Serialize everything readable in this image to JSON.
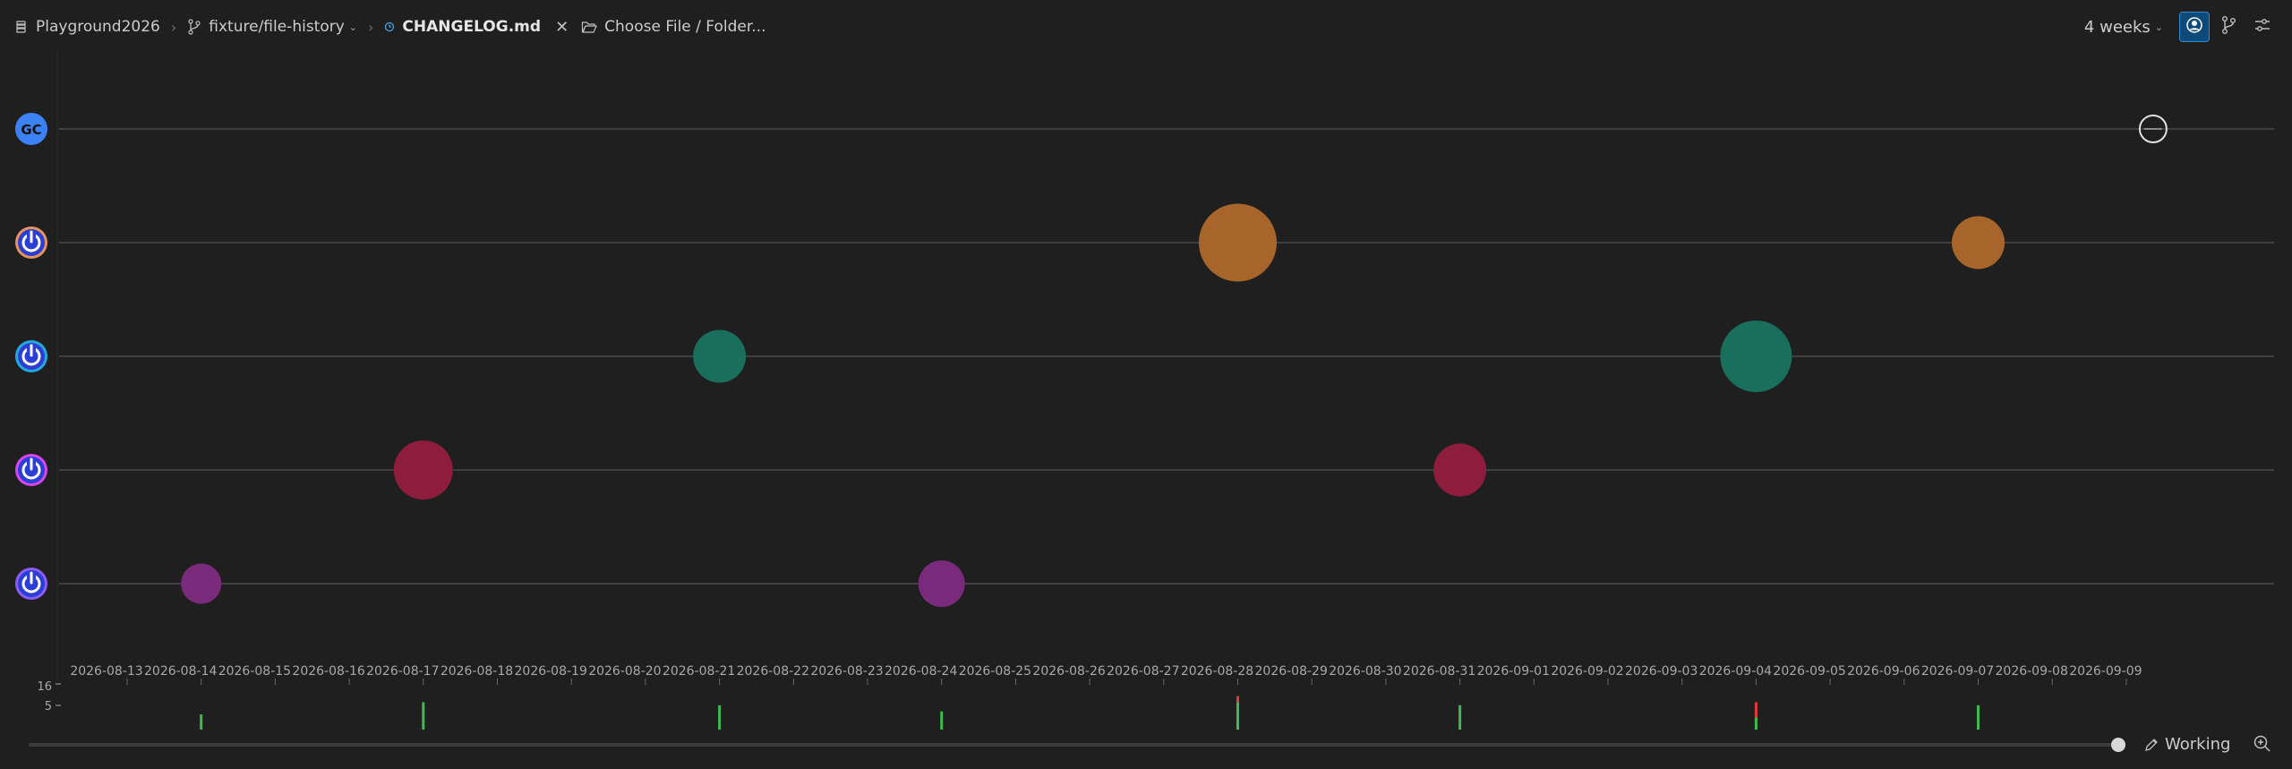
{
  "toolbar": {
    "repo": "Playground2026",
    "branch": "fixture/file-history",
    "file": "CHANGELOG.md",
    "choose": "Choose File / Folder...",
    "period": "4 weeks"
  },
  "authors": [
    {
      "initials": "GC",
      "color": "#3b82f6",
      "ring": "#3b82f6",
      "type": "initials"
    },
    {
      "initials": "",
      "color": "#2b3fd4",
      "ring": "#e8935a",
      "type": "power"
    },
    {
      "initials": "",
      "color": "#2b3fd4",
      "ring": "#23a8e0",
      "type": "power"
    },
    {
      "initials": "",
      "color": "#2b3fd4",
      "ring": "#d946ef",
      "type": "power"
    },
    {
      "initials": "",
      "color": "#2b3fd4",
      "ring": "#8b5cf6",
      "type": "power"
    }
  ],
  "chart_data": {
    "type": "scatter",
    "x_dates": [
      "2026-08-13",
      "2026-08-14",
      "2026-08-15",
      "2026-08-16",
      "2026-08-17",
      "2026-08-18",
      "2026-08-19",
      "2026-08-20",
      "2026-08-21",
      "2026-08-22",
      "2026-08-23",
      "2026-08-24",
      "2026-08-25",
      "2026-08-26",
      "2026-08-27",
      "2026-08-28",
      "2026-08-29",
      "2026-08-30",
      "2026-08-31",
      "2026-09-01",
      "2026-09-02",
      "2026-09-03",
      "2026-09-04",
      "2026-09-05",
      "2026-09-06",
      "2026-09-07",
      "2026-09-08",
      "2026-09-09"
    ],
    "points": [
      {
        "author": 4,
        "date": "2026-08-14",
        "size": 3,
        "color": "#7a2a7a"
      },
      {
        "author": 3,
        "date": "2026-08-17",
        "size": 6,
        "color": "#8e1c3c"
      },
      {
        "author": 2,
        "date": "2026-08-21",
        "size": 5,
        "color": "#1a6e5c"
      },
      {
        "author": 4,
        "date": "2026-08-24",
        "size": 4,
        "color": "#7a2a7a"
      },
      {
        "author": 1,
        "date": "2026-08-28",
        "size": 9,
        "color": "#a8652b"
      },
      {
        "author": 3,
        "date": "2026-08-31",
        "size": 5,
        "color": "#8e1c3c"
      },
      {
        "author": 2,
        "date": "2026-09-04",
        "size": 8,
        "color": "#1a6e5c"
      },
      {
        "author": 1,
        "date": "2026-09-07",
        "size": 5,
        "color": "#a8652b"
      }
    ],
    "working_marker": {
      "author": 0,
      "date": "2026-09-09"
    },
    "histogram": {
      "ymax_label": "16",
      "ymid_label": "5",
      "bars": [
        {
          "date": "2026-08-14",
          "add": 5,
          "del": 0
        },
        {
          "date": "2026-08-17",
          "add": 9,
          "del": 0
        },
        {
          "date": "2026-08-21",
          "add": 8,
          "del": 0
        },
        {
          "date": "2026-08-24",
          "add": 6,
          "del": 0
        },
        {
          "date": "2026-08-28",
          "add": 9,
          "del": 2
        },
        {
          "date": "2026-08-31",
          "add": 8,
          "del": 0
        },
        {
          "date": "2026-09-04",
          "add": 4,
          "del": 5
        },
        {
          "date": "2026-09-07",
          "add": 8,
          "del": 0
        }
      ]
    }
  },
  "footer": {
    "working": "Working"
  },
  "colors": {
    "gridline": "#4a4a4a",
    "add": "#3fb950",
    "del": "#e5393f"
  }
}
